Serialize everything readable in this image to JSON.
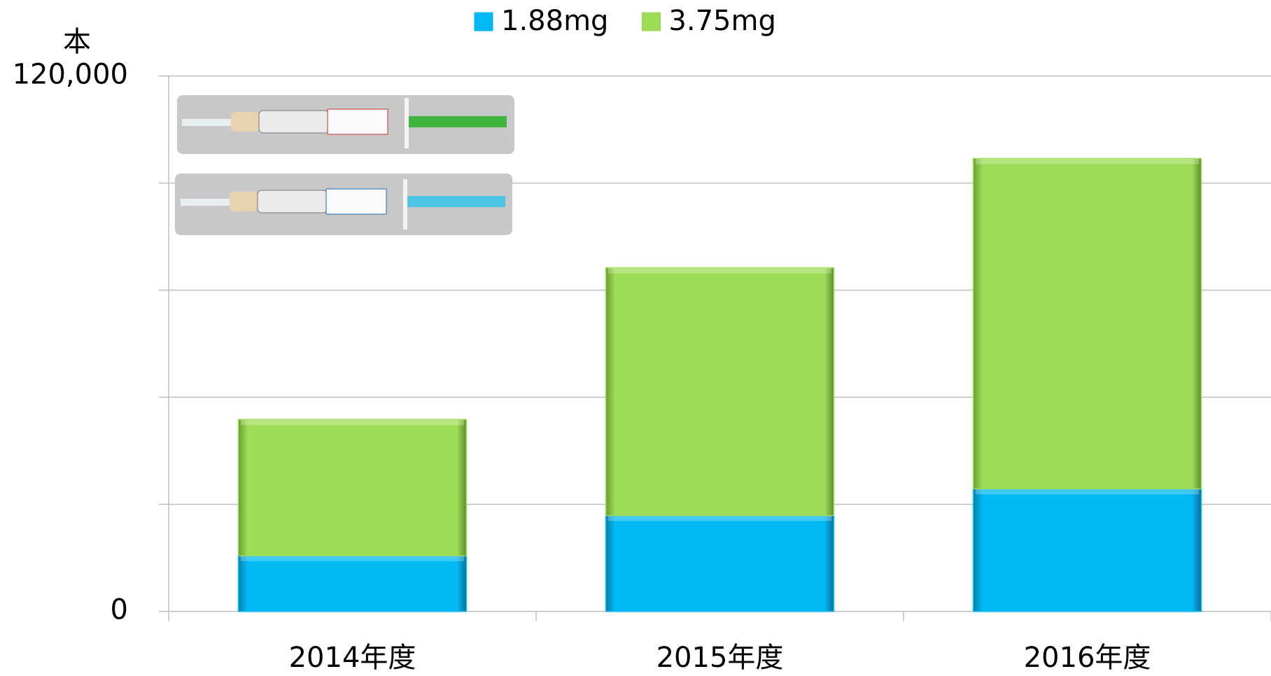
{
  "chart_data": {
    "type": "stacked-bar",
    "y_unit": "本",
    "categories": [
      "2014年度",
      "2015年度",
      "2016年度"
    ],
    "series": [
      {
        "name": "1.88mg",
        "color": "#00b9f2",
        "values": [
          12500,
          21500,
          27500
        ]
      },
      {
        "name": "3.75mg",
        "color": "#9edc58",
        "values": [
          30500,
          55500,
          74000
        ]
      }
    ],
    "ylim": [
      0,
      120000
    ],
    "yticks": [
      0,
      {
        "value": 24000,
        "label": null
      },
      {
        "value": 48000,
        "label": null
      },
      {
        "value": 72000,
        "label": null
      },
      {
        "value": 96000,
        "label": null
      },
      {
        "value": 120000,
        "label": "120,000"
      }
    ],
    "grid": true,
    "legend": "top"
  }
}
